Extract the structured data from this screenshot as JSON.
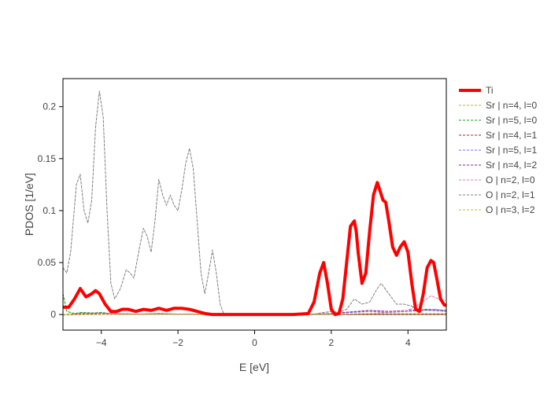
{
  "chart_data": {
    "type": "line",
    "title": "",
    "xlabel": "E [eV]",
    "ylabel": "PDOS [1/eV]",
    "xlim": [
      -5,
      5
    ],
    "ylim": [
      -0.015,
      0.227
    ],
    "x_ticks": [
      {
        "value": -4,
        "label": "−4"
      },
      {
        "value": -2,
        "label": "−2"
      },
      {
        "value": 0,
        "label": "0"
      },
      {
        "value": 2,
        "label": "2"
      },
      {
        "value": 4,
        "label": "4"
      }
    ],
    "y_ticks": [
      {
        "value": 0,
        "label": "0"
      },
      {
        "value": 0.05,
        "label": "0.05"
      },
      {
        "value": 0.1,
        "label": "0.1"
      },
      {
        "value": 0.15,
        "label": "0.15"
      },
      {
        "value": 0.2,
        "label": "0.2"
      }
    ],
    "grid": false,
    "legend_position": "right",
    "series": [
      {
        "name": "Ti",
        "color": "#ff0000",
        "dash": "solid",
        "width": 4,
        "x": [
          -5,
          -4.85,
          -4.7,
          -4.55,
          -4.4,
          -4.25,
          -4.15,
          -4.05,
          -3.9,
          -3.75,
          -3.6,
          -3.45,
          -3.3,
          -3.1,
          -2.9,
          -2.7,
          -2.5,
          -2.3,
          -2.1,
          -1.9,
          -1.7,
          -1.5,
          -1.3,
          -1.1,
          -0.5,
          0,
          0.5,
          1.0,
          1.4,
          1.55,
          1.7,
          1.8,
          1.9,
          2.0,
          2.1,
          2.2,
          2.3,
          2.4,
          2.5,
          2.6,
          2.65,
          2.7,
          2.8,
          2.9,
          3.0,
          3.1,
          3.2,
          3.28,
          3.35,
          3.42,
          3.5,
          3.6,
          3.7,
          3.8,
          3.9,
          4.0,
          4.1,
          4.2,
          4.3,
          4.4,
          4.5,
          4.6,
          4.67,
          4.75,
          4.85,
          4.95,
          5
        ],
        "y": [
          0.007,
          0.007,
          0.015,
          0.025,
          0.017,
          0.02,
          0.023,
          0.02,
          0.01,
          0.003,
          0.003,
          0.005,
          0.005,
          0.003,
          0.005,
          0.004,
          0.006,
          0.004,
          0.006,
          0.006,
          0.005,
          0.003,
          0.001,
          0.0,
          0.0,
          0.0,
          0.0,
          0.0,
          0.001,
          0.012,
          0.04,
          0.05,
          0.03,
          0.005,
          0.0,
          0.001,
          0.015,
          0.05,
          0.085,
          0.09,
          0.08,
          0.06,
          0.03,
          0.04,
          0.08,
          0.115,
          0.127,
          0.118,
          0.11,
          0.108,
          0.09,
          0.065,
          0.057,
          0.065,
          0.07,
          0.06,
          0.03,
          0.005,
          0.003,
          0.02,
          0.045,
          0.052,
          0.05,
          0.035,
          0.015,
          0.009,
          0.009
        ]
      },
      {
        "name": "Sr | n=4, l=0",
        "color": "#e6a020",
        "dash": "3,2",
        "width": 1,
        "x": [
          -5,
          -4,
          -3,
          -2,
          -1,
          0,
          1,
          2,
          3,
          4,
          5
        ],
        "y": [
          -0.0005,
          0.0,
          0.0,
          0.0,
          0.0,
          0.0,
          0.0,
          0.0,
          0.0,
          0.0,
          0.0
        ]
      },
      {
        "name": "Sr | n=5, l=0",
        "color": "#1f9a1f",
        "dash": "3,2",
        "width": 1,
        "x": [
          -5,
          -4.9,
          -4.7,
          -4.5,
          -4.2,
          -4.0,
          -3.8,
          -3.5,
          -3.0,
          -2.5,
          -2.0,
          -1.5,
          -1.0,
          0,
          1,
          2,
          3,
          4,
          5
        ],
        "y": [
          0.02,
          0.003,
          0.001,
          0.002,
          0.0015,
          0.002,
          0.001,
          0.0005,
          0.0005,
          0.0005,
          0.0005,
          0.0003,
          0.0,
          0.0,
          0.0,
          0.0,
          0.0,
          0.0,
          0.0
        ]
      },
      {
        "name": "Sr | n=4, l=1",
        "color": "#b2182b",
        "dash": "3,2",
        "width": 1,
        "x": [
          -5,
          -4.5,
          -4.0,
          -3.5,
          -3.0,
          -2.5,
          -2.0,
          -1.5,
          -1.0,
          0,
          1,
          2,
          3,
          4,
          5
        ],
        "y": [
          0.0,
          0.0005,
          0.001,
          0.0005,
          0.0005,
          0.001,
          0.0005,
          0.0,
          0.0,
          0.0,
          0.0,
          0.0,
          0.0,
          0.0,
          0.0
        ]
      },
      {
        "name": "Sr | n=5, l=1",
        "color": "#7b68ee",
        "dash": "3,2",
        "width": 1,
        "x": [
          -5,
          -4.5,
          -4.0,
          -3.0,
          -2.0,
          -1.0,
          0,
          1,
          2,
          2.5,
          3.0,
          3.5,
          4.0,
          4.5,
          5
        ],
        "y": [
          0.0,
          0.001,
          0.001,
          0.0005,
          0.0005,
          0.0,
          0.0,
          0.0,
          0.001,
          0.002,
          0.003,
          0.002,
          0.003,
          0.004,
          0.003
        ]
      },
      {
        "name": "Sr | n=4, l=2",
        "color": "#8b1a8b",
        "dash": "3,2",
        "width": 1,
        "x": [
          -5,
          -4.5,
          -4.0,
          -3.0,
          -2.0,
          -1.0,
          0,
          1,
          2,
          3,
          3.5,
          4.0,
          4.5,
          5
        ],
        "y": [
          0.0,
          0.001,
          0.001,
          0.0005,
          0.0005,
          0.0,
          0.0,
          0.0,
          0.001,
          0.004,
          0.003,
          0.004,
          0.005,
          0.004
        ]
      },
      {
        "name": "O | n=2, l=0",
        "color": "#e377c2",
        "dash": "3,2",
        "width": 1,
        "x": [
          -5,
          -4,
          -3,
          -2,
          -1,
          0,
          1,
          2,
          3,
          3.5,
          4.0,
          4.3,
          4.6,
          4.8,
          5
        ],
        "y": [
          0.0,
          0.0,
          0.0,
          0.0,
          0.0,
          0.0,
          0.0,
          0.0,
          0.001,
          0.002,
          0.004,
          0.01,
          0.018,
          0.015,
          0.008
        ]
      },
      {
        "name": "O | n=2, l=1",
        "color": "#7f7f7f",
        "dash": "3,2",
        "width": 1,
        "x": [
          -5,
          -4.9,
          -4.8,
          -4.65,
          -4.55,
          -4.45,
          -4.35,
          -4.25,
          -4.15,
          -4.05,
          -3.95,
          -3.85,
          -3.75,
          -3.65,
          -3.5,
          -3.35,
          -3.25,
          -3.15,
          -3.0,
          -2.9,
          -2.8,
          -2.7,
          -2.6,
          -2.5,
          -2.4,
          -2.3,
          -2.2,
          -2.1,
          -2.0,
          -1.9,
          -1.8,
          -1.7,
          -1.6,
          -1.5,
          -1.4,
          -1.3,
          -1.2,
          -1.1,
          -1.0,
          -0.9,
          -0.8,
          0,
          1,
          1.5,
          1.8,
          2.0,
          2.2,
          2.4,
          2.6,
          2.8,
          3.0,
          3.2,
          3.3,
          3.5,
          3.7,
          3.9,
          4.1,
          4.3,
          4.5,
          4.7,
          4.9,
          5
        ],
        "y": [
          0.045,
          0.04,
          0.06,
          0.125,
          0.135,
          0.1,
          0.088,
          0.11,
          0.18,
          0.215,
          0.19,
          0.1,
          0.03,
          0.015,
          0.025,
          0.043,
          0.04,
          0.035,
          0.065,
          0.083,
          0.075,
          0.06,
          0.09,
          0.13,
          0.115,
          0.105,
          0.115,
          0.105,
          0.1,
          0.12,
          0.145,
          0.16,
          0.14,
          0.09,
          0.04,
          0.02,
          0.04,
          0.062,
          0.04,
          0.01,
          0.0,
          0.0,
          0.0,
          0.0,
          0.002,
          0.003,
          0.002,
          0.005,
          0.015,
          0.01,
          0.012,
          0.025,
          0.03,
          0.02,
          0.01,
          0.01,
          0.008,
          0.005,
          0.004,
          0.005,
          0.004,
          0.003
        ]
      },
      {
        "name": "O | n=3, l=2",
        "color": "#bcbd22",
        "dash": "3,2",
        "width": 1,
        "x": [
          -5,
          -4,
          -3,
          -2,
          -1,
          0,
          1,
          2,
          3,
          4,
          5
        ],
        "y": [
          0.0,
          0.0005,
          0.0005,
          0.0005,
          0.0,
          0.0,
          0.0,
          0.0005,
          0.001,
          0.001,
          0.001
        ]
      }
    ]
  }
}
